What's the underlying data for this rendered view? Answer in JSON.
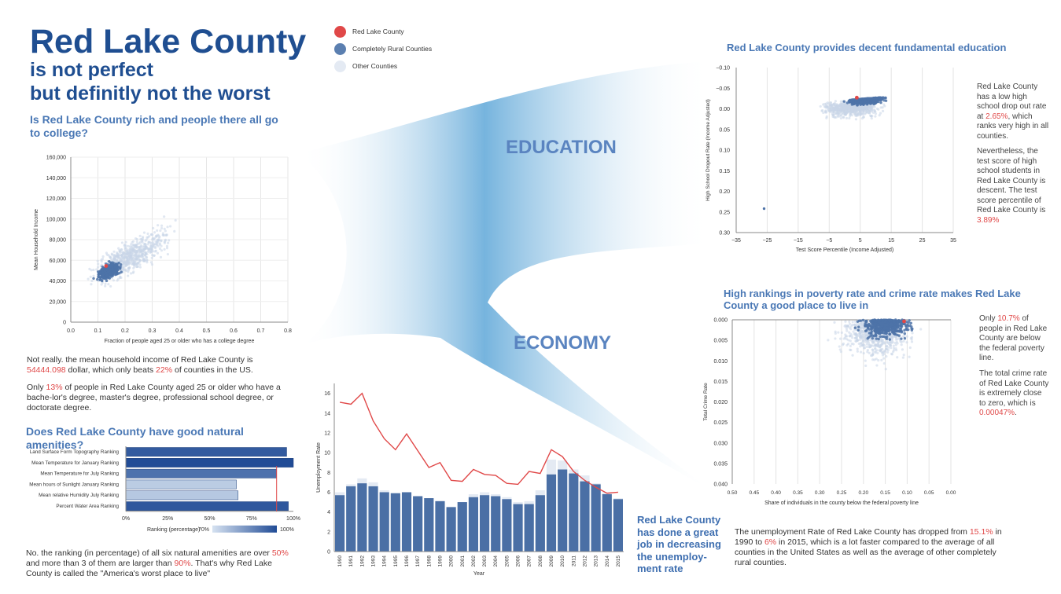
{
  "title": {
    "main": "Red Lake County",
    "sub1": "is not perfect",
    "sub2": "but definitly not the worst"
  },
  "legend": {
    "items": [
      {
        "label": "Red Lake County",
        "color": "#e04848"
      },
      {
        "label": "Completely Rural Counties",
        "color": "#5b7fb0"
      },
      {
        "label": "Other Counties",
        "color": "#e4eaf3"
      }
    ]
  },
  "section1": {
    "question": "Is Red Lake County rich and people there all go to college?",
    "p1a": "Not really. the mean household income of Red Lake County is ",
    "p1b": "54444.098",
    "p1c": " dollar, which only beats ",
    "p1d": "22%",
    "p1e": " of counties in the US.",
    "p2a": "Only ",
    "p2b": "13%",
    "p2c": " of people in Red Lake County aged 25 or older who have a bache-lor's degree, master's degree, professional school degree, or doctorate degree."
  },
  "section2": {
    "question": "Does Red Lake County have good natural amenities?",
    "p1": "No. the ranking (in percentage) of all six natural amenities are over ",
    "p1r": "50%",
    "p2": " and more than 3 of them are larger than ",
    "p2r": "90%",
    "p3": ". That's why Red Lake County is called the \"America's worst place to live\""
  },
  "flow": {
    "education": "EDUCATION",
    "economy": "ECONOMY"
  },
  "edu": {
    "title": "Red Lake County provides decent fundamental education",
    "t1": "Red Lake County has a low high school drop out rate at ",
    "t1r": "2.65%",
    "t2": ", which ranks very high in all counties.",
    "t3": "Nevertheless, the test score of high school students in Red Lake County is descent. The test score percentile of Red Lake County is ",
    "t3r": "3.89%"
  },
  "pov": {
    "title": "High rankings in poverty rate and crime rate makes Red Lake County a good place to live in",
    "t1": "Only ",
    "t1r": "10.7%",
    "t2": " of people in Red Lake County are below the federal poverty line.",
    "t3": "The total crime rate of Red Lake County is extremely close to zero, which is ",
    "t3r": "0.00047%",
    "t4": "."
  },
  "unemp": {
    "statement": "Red Lake County has done a great job in decreasing the unemploy-ment rate",
    "t1": "The unemployment Rate of Red Lake County has dropped from ",
    "t1r": "15.1%",
    "t2": " in 1990 to ",
    "t2r": "6%",
    "t3": " in 2015, which is a lot faster compared to the average of all counties in the United States as well as the average of other completely rural counties."
  },
  "chart_data": [
    {
      "id": "income-college",
      "type": "scatter",
      "xlabel": "Fraction of people aged 25 or older who has a college degree",
      "ylabel": "Mean Household Income",
      "xlim": [
        0,
        0.8
      ],
      "ylim": [
        0,
        160000
      ],
      "xticks": [
        "0.0",
        "0.1",
        "0.2",
        "0.3",
        "0.4",
        "0.5",
        "0.6",
        "0.7",
        "0.8"
      ],
      "yticks": [
        "0",
        "20,000",
        "40,000",
        "60,000",
        "80,000",
        "100,000",
        "120,000",
        "140,000",
        "160,000"
      ],
      "highlight": {
        "x": 0.13,
        "y": 54444
      }
    },
    {
      "id": "amenities",
      "type": "bar",
      "orientation": "horizontal",
      "categories": [
        "Land Surface Form Topography Ranking",
        "Mean Temperature for January Ranking",
        "Mean Temperature for July Ranking",
        "Mean hours of Sunlight January Ranking",
        "Mean relative Humidity July Ranking",
        "Percent Water Area Ranking"
      ],
      "values": [
        96,
        100,
        90,
        66,
        67,
        97
      ],
      "xticks": [
        "0%",
        "25%",
        "50%",
        "75%",
        "100%"
      ],
      "legend_title": "Ranking (percentage)",
      "legend_min": "70%",
      "legend_max": "100%",
      "reference": 90
    },
    {
      "id": "dropout-test",
      "type": "scatter",
      "xlabel": "Test Score Percentile (Income Adjusted)",
      "ylabel": "High School Dropout Rate (Income Adjusted)",
      "xlim": [
        -35,
        35
      ],
      "ylim": [
        -0.1,
        0.3
      ],
      "xticks": [
        "−35",
        "−25",
        "−15",
        "−5",
        "5",
        "15",
        "25",
        "35"
      ],
      "yticks": [
        "−0.10",
        "−0.05",
        "0.00",
        "0.05",
        "0.10",
        "0.15",
        "0.20",
        "0.25",
        "0.30"
      ],
      "highlight": {
        "x": 3.9,
        "y": -0.027
      }
    },
    {
      "id": "poverty-crime",
      "type": "scatter",
      "xlabel": "Share of individuals in the county below the federal poverty line",
      "ylabel": "Total Crime Rate",
      "xlim": [
        0.5,
        0.0
      ],
      "ylim": [
        0.0,
        0.04
      ],
      "xticks": [
        "0.50",
        "0.45",
        "0.40",
        "0.35",
        "0.30",
        "0.25",
        "0.20",
        "0.15",
        "0.10",
        "0.05",
        "0.00"
      ],
      "yticks": [
        "0.000",
        "0.005",
        "0.010",
        "0.015",
        "0.020",
        "0.025",
        "0.030",
        "0.035",
        "0.040"
      ],
      "highlight": {
        "x": 0.107,
        "y": 0.0
      }
    },
    {
      "id": "unemployment",
      "type": "bar",
      "xlabel": "Year",
      "ylabel": "Unemployment Rate",
      "ylim": [
        0,
        17
      ],
      "yticks": [
        "0",
        "2",
        "4",
        "6",
        "8",
        "10",
        "12",
        "14",
        "16"
      ],
      "categories": [
        "1990",
        "1991",
        "1992",
        "1993",
        "1994",
        "1995",
        "1996",
        "1997",
        "1998",
        "1999",
        "2000",
        "2001",
        "2002",
        "2003",
        "2004",
        "2005",
        "2006",
        "2007",
        "2008",
        "2009",
        "2010",
        "2011",
        "2012",
        "2013",
        "2014",
        "2015"
      ],
      "series": [
        {
          "name": "Red Lake County",
          "type": "line",
          "values": [
            15.1,
            14.9,
            16.0,
            13.2,
            11.4,
            10.3,
            11.9,
            10.2,
            8.5,
            9.0,
            7.2,
            7.1,
            8.3,
            7.8,
            7.7,
            6.9,
            6.8,
            8.1,
            7.9,
            10.3,
            9.6,
            8.1,
            7.2,
            6.5,
            5.9,
            6.0
          ]
        },
        {
          "name": "Completely Rural Counties",
          "type": "bar",
          "values": [
            5.7,
            6.6,
            6.9,
            6.6,
            6.0,
            5.9,
            6.0,
            5.6,
            5.4,
            5.1,
            4.5,
            5.0,
            5.5,
            5.7,
            5.6,
            5.3,
            4.8,
            4.8,
            5.7,
            7.8,
            8.3,
            7.9,
            7.1,
            6.8,
            5.8,
            5.3
          ]
        },
        {
          "name": "Other Counties",
          "type": "bar",
          "values": [
            6.0,
            6.8,
            7.4,
            7.0,
            6.2,
            5.9,
            5.8,
            5.4,
            4.8,
            4.6,
            4.3,
            5.0,
            5.8,
            6.0,
            5.8,
            5.5,
            5.0,
            5.1,
            6.2,
            9.3,
            9.2,
            8.3,
            7.7,
            6.9,
            6.0,
            5.4
          ]
        }
      ]
    }
  ]
}
